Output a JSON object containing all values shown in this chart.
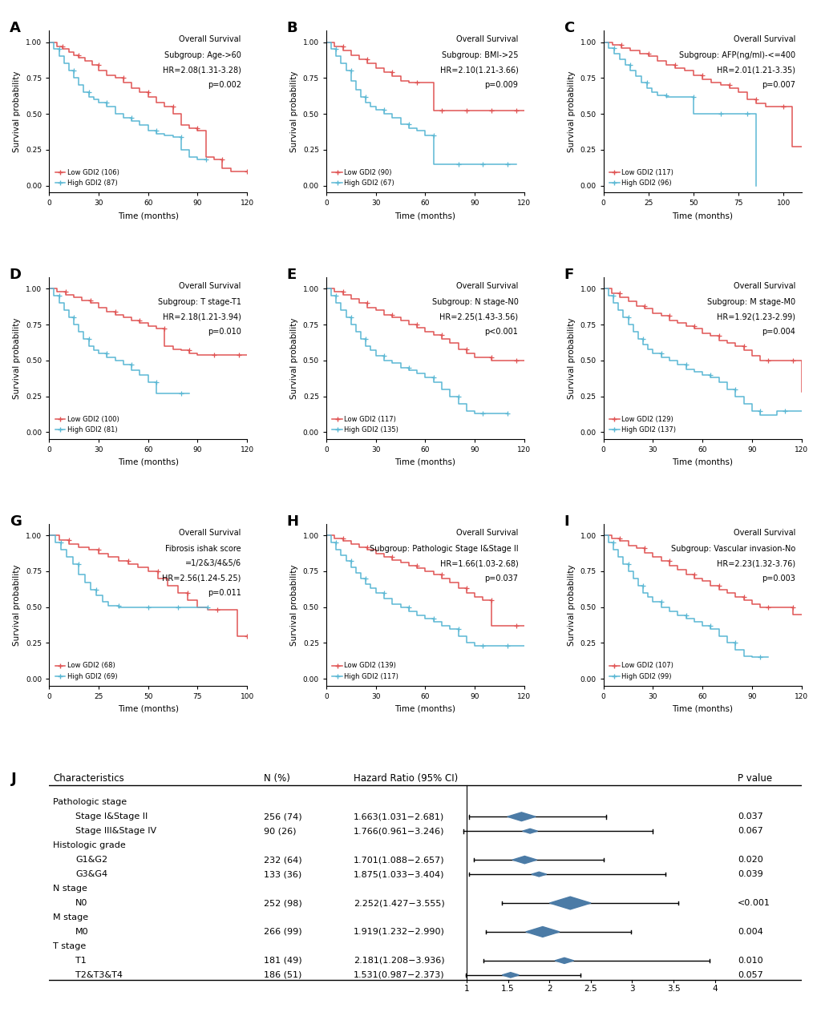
{
  "panels": [
    {
      "label": "A",
      "title": "Overall Survival",
      "subtitle": "Subgroup: Age->60",
      "hr_text": "HR=2.08(1.31-3.28)",
      "p_text": "p=0.002",
      "low_n": 106,
      "high_n": 87,
      "xmax": 120,
      "xticks": [
        0,
        30,
        60,
        90,
        120
      ],
      "low_times": [
        0,
        5,
        8,
        12,
        15,
        18,
        22,
        26,
        30,
        35,
        40,
        45,
        50,
        55,
        60,
        65,
        70,
        75,
        80,
        85,
        90,
        95,
        100,
        105,
        110,
        115,
        120
      ],
      "low_surv": [
        1.0,
        0.97,
        0.95,
        0.93,
        0.91,
        0.89,
        0.87,
        0.84,
        0.8,
        0.77,
        0.75,
        0.72,
        0.68,
        0.65,
        0.62,
        0.58,
        0.55,
        0.5,
        0.42,
        0.4,
        0.38,
        0.2,
        0.18,
        0.12,
        0.1,
        0.1,
        0.1
      ],
      "high_times": [
        0,
        3,
        6,
        9,
        12,
        15,
        18,
        21,
        24,
        27,
        30,
        35,
        40,
        45,
        50,
        55,
        60,
        65,
        70,
        75,
        80,
        85,
        90,
        95
      ],
      "high_surv": [
        1.0,
        0.95,
        0.9,
        0.85,
        0.8,
        0.75,
        0.7,
        0.65,
        0.62,
        0.6,
        0.58,
        0.55,
        0.5,
        0.47,
        0.45,
        0.42,
        0.38,
        0.36,
        0.35,
        0.34,
        0.25,
        0.2,
        0.18,
        0.18
      ]
    },
    {
      "label": "B",
      "title": "Overall Survival",
      "subtitle": "Subgroup: BMI->25",
      "hr_text": "HR=2.10(1.21-3.66)",
      "p_text": "p=0.009",
      "low_n": 90,
      "high_n": 67,
      "xmax": 120,
      "xticks": [
        0,
        30,
        60,
        90,
        120
      ],
      "low_times": [
        0,
        5,
        10,
        15,
        20,
        25,
        30,
        35,
        40,
        45,
        50,
        55,
        60,
        65,
        70,
        75,
        80,
        85,
        90,
        95,
        100,
        105,
        110,
        115,
        120
      ],
      "low_surv": [
        1.0,
        0.97,
        0.94,
        0.91,
        0.88,
        0.85,
        0.82,
        0.79,
        0.76,
        0.73,
        0.72,
        0.72,
        0.72,
        0.52,
        0.52,
        0.52,
        0.52,
        0.52,
        0.52,
        0.52,
        0.52,
        0.52,
        0.52,
        0.52,
        0.52
      ],
      "high_times": [
        0,
        3,
        6,
        9,
        12,
        15,
        18,
        21,
        24,
        27,
        30,
        35,
        40,
        45,
        50,
        55,
        60,
        65,
        70,
        75,
        80,
        85,
        90,
        95,
        100,
        105,
        110,
        115
      ],
      "high_surv": [
        1.0,
        0.95,
        0.9,
        0.85,
        0.8,
        0.73,
        0.67,
        0.62,
        0.58,
        0.55,
        0.53,
        0.5,
        0.47,
        0.43,
        0.4,
        0.38,
        0.35,
        0.15,
        0.15,
        0.15,
        0.15,
        0.15,
        0.15,
        0.15,
        0.15,
        0.15,
        0.15,
        0.15
      ]
    },
    {
      "label": "C",
      "title": "Overall Survival",
      "subtitle": "Subgroup: AFP(ng/ml)-<=400",
      "hr_text": "HR=2.01(1.21-3.35)",
      "p_text": "p=0.007",
      "low_n": 117,
      "high_n": 96,
      "xmax": 110,
      "xticks": [
        0,
        25,
        50,
        75,
        100
      ],
      "low_times": [
        0,
        5,
        10,
        15,
        20,
        25,
        30,
        35,
        40,
        45,
        50,
        55,
        60,
        65,
        70,
        75,
        80,
        85,
        90,
        95,
        100,
        105,
        110
      ],
      "low_surv": [
        1.0,
        0.98,
        0.96,
        0.94,
        0.92,
        0.9,
        0.87,
        0.84,
        0.82,
        0.8,
        0.77,
        0.74,
        0.72,
        0.7,
        0.68,
        0.65,
        0.6,
        0.57,
        0.55,
        0.55,
        0.55,
        0.27,
        0.27
      ],
      "high_times": [
        0,
        3,
        6,
        9,
        12,
        15,
        18,
        21,
        24,
        27,
        30,
        35,
        40,
        45,
        50,
        55,
        60,
        65,
        70,
        75,
        80,
        85
      ],
      "high_surv": [
        1.0,
        0.96,
        0.92,
        0.88,
        0.84,
        0.8,
        0.76,
        0.72,
        0.68,
        0.65,
        0.63,
        0.62,
        0.62,
        0.62,
        0.5,
        0.5,
        0.5,
        0.5,
        0.5,
        0.5,
        0.5,
        0.0
      ]
    },
    {
      "label": "D",
      "title": "Overall Survival",
      "subtitle": "Subgroup: T stage-T1",
      "hr_text": "HR=2.18(1.21-3.94)",
      "p_text": "p=0.010",
      "low_n": 100,
      "high_n": 81,
      "xmax": 120,
      "xticks": [
        0,
        30,
        60,
        90,
        120
      ],
      "low_times": [
        0,
        5,
        10,
        15,
        20,
        25,
        30,
        35,
        40,
        45,
        50,
        55,
        60,
        65,
        70,
        75,
        80,
        85,
        90,
        95,
        100,
        105,
        110,
        115,
        120
      ],
      "low_surv": [
        1.0,
        0.98,
        0.96,
        0.94,
        0.92,
        0.9,
        0.87,
        0.84,
        0.82,
        0.8,
        0.78,
        0.76,
        0.74,
        0.72,
        0.6,
        0.58,
        0.57,
        0.55,
        0.54,
        0.54,
        0.54,
        0.54,
        0.54,
        0.54,
        0.54
      ],
      "high_times": [
        0,
        3,
        6,
        9,
        12,
        15,
        18,
        21,
        24,
        27,
        30,
        35,
        40,
        45,
        50,
        55,
        60,
        65,
        70,
        75,
        80,
        85
      ],
      "high_surv": [
        1.0,
        0.95,
        0.9,
        0.85,
        0.8,
        0.75,
        0.7,
        0.65,
        0.6,
        0.57,
        0.55,
        0.52,
        0.5,
        0.47,
        0.43,
        0.4,
        0.35,
        0.27,
        0.27,
        0.27,
        0.27,
        0.27
      ]
    },
    {
      "label": "E",
      "title": "Overall Survival",
      "subtitle": "Subgroup: N stage-N0",
      "hr_text": "HR=2.25(1.43-3.56)",
      "p_text": "p<0.001",
      "low_n": 117,
      "high_n": 135,
      "xmax": 120,
      "xticks": [
        0,
        30,
        60,
        90,
        120
      ],
      "low_times": [
        0,
        5,
        10,
        15,
        20,
        25,
        30,
        35,
        40,
        45,
        50,
        55,
        60,
        65,
        70,
        75,
        80,
        85,
        90,
        95,
        100,
        105,
        110,
        115,
        120
      ],
      "low_surv": [
        1.0,
        0.98,
        0.96,
        0.93,
        0.9,
        0.87,
        0.85,
        0.82,
        0.8,
        0.78,
        0.75,
        0.73,
        0.7,
        0.68,
        0.65,
        0.62,
        0.58,
        0.55,
        0.52,
        0.52,
        0.5,
        0.5,
        0.5,
        0.5,
        0.5
      ],
      "high_times": [
        0,
        3,
        6,
        9,
        12,
        15,
        18,
        21,
        24,
        27,
        30,
        35,
        40,
        45,
        50,
        55,
        60,
        65,
        70,
        75,
        80,
        85,
        90,
        95,
        100,
        105,
        110
      ],
      "high_surv": [
        1.0,
        0.95,
        0.9,
        0.85,
        0.8,
        0.75,
        0.7,
        0.65,
        0.6,
        0.57,
        0.53,
        0.5,
        0.48,
        0.45,
        0.43,
        0.41,
        0.38,
        0.35,
        0.3,
        0.25,
        0.2,
        0.15,
        0.13,
        0.13,
        0.13,
        0.13,
        0.13
      ]
    },
    {
      "label": "F",
      "title": "Overall Survival",
      "subtitle": "Subgroup: M stage-M0",
      "hr_text": "HR=1.92(1.23-2.99)",
      "p_text": "p=0.004",
      "low_n": 129,
      "high_n": 137,
      "xmax": 120,
      "xticks": [
        0,
        30,
        60,
        90,
        120
      ],
      "low_times": [
        0,
        5,
        10,
        15,
        20,
        25,
        30,
        35,
        40,
        45,
        50,
        55,
        60,
        65,
        70,
        75,
        80,
        85,
        90,
        95,
        100,
        105,
        110,
        115,
        120
      ],
      "low_surv": [
        1.0,
        0.97,
        0.94,
        0.91,
        0.88,
        0.86,
        0.83,
        0.81,
        0.78,
        0.76,
        0.74,
        0.72,
        0.69,
        0.67,
        0.64,
        0.62,
        0.6,
        0.57,
        0.53,
        0.5,
        0.5,
        0.5,
        0.5,
        0.5,
        0.28
      ],
      "high_times": [
        0,
        3,
        6,
        9,
        12,
        15,
        18,
        21,
        24,
        27,
        30,
        35,
        40,
        45,
        50,
        55,
        60,
        65,
        70,
        75,
        80,
        85,
        90,
        95,
        100,
        105,
        110,
        115,
        120
      ],
      "high_surv": [
        1.0,
        0.95,
        0.9,
        0.85,
        0.8,
        0.75,
        0.7,
        0.65,
        0.61,
        0.58,
        0.55,
        0.52,
        0.5,
        0.47,
        0.44,
        0.42,
        0.4,
        0.38,
        0.35,
        0.3,
        0.25,
        0.2,
        0.15,
        0.12,
        0.12,
        0.15,
        0.15,
        0.15,
        0.15
      ]
    },
    {
      "label": "G",
      "title": "Overall Survival",
      "subtitle": "Fibrosis ishak score\n=1/2&3/4&5/6",
      "hr_text": "HR=2.56(1.24-5.25)",
      "p_text": "p=0.011",
      "low_n": 68,
      "high_n": 69,
      "xmax": 100,
      "xticks": [
        0,
        25,
        50,
        75,
        100
      ],
      "low_times": [
        0,
        5,
        10,
        15,
        20,
        25,
        30,
        35,
        40,
        45,
        50,
        55,
        60,
        65,
        70,
        75,
        80,
        85,
        90,
        95,
        100
      ],
      "low_surv": [
        1.0,
        0.97,
        0.94,
        0.92,
        0.9,
        0.87,
        0.85,
        0.82,
        0.8,
        0.78,
        0.75,
        0.7,
        0.65,
        0.6,
        0.55,
        0.5,
        0.48,
        0.48,
        0.48,
        0.3,
        0.3
      ],
      "high_times": [
        0,
        3,
        6,
        9,
        12,
        15,
        18,
        21,
        24,
        27,
        30,
        35,
        40,
        45,
        50,
        55,
        60,
        65,
        70,
        75,
        80
      ],
      "high_surv": [
        1.0,
        0.95,
        0.9,
        0.85,
        0.8,
        0.73,
        0.67,
        0.62,
        0.58,
        0.54,
        0.51,
        0.5,
        0.5,
        0.5,
        0.5,
        0.5,
        0.5,
        0.5,
        0.5,
        0.5,
        0.5
      ]
    },
    {
      "label": "H",
      "title": "Overall Survival",
      "subtitle": "Subgroup: Pathologic Stage I&Stage II",
      "hr_text": "HR=1.66(1.03-2.68)",
      "p_text": "p=0.037",
      "low_n": 139,
      "high_n": 117,
      "xmax": 120,
      "xticks": [
        0,
        30,
        60,
        90,
        120
      ],
      "low_times": [
        0,
        5,
        10,
        15,
        20,
        25,
        30,
        35,
        40,
        45,
        50,
        55,
        60,
        65,
        70,
        75,
        80,
        85,
        90,
        95,
        100,
        105,
        110,
        115,
        120
      ],
      "low_surv": [
        1.0,
        0.98,
        0.96,
        0.94,
        0.92,
        0.9,
        0.87,
        0.85,
        0.83,
        0.81,
        0.79,
        0.77,
        0.75,
        0.73,
        0.7,
        0.67,
        0.63,
        0.6,
        0.57,
        0.55,
        0.37,
        0.37,
        0.37,
        0.37,
        0.37
      ],
      "high_times": [
        0,
        3,
        6,
        9,
        12,
        15,
        18,
        21,
        24,
        27,
        30,
        35,
        40,
        45,
        50,
        55,
        60,
        65,
        70,
        75,
        80,
        85,
        90,
        95,
        100,
        105,
        110,
        115,
        120
      ],
      "high_surv": [
        1.0,
        0.95,
        0.9,
        0.86,
        0.82,
        0.78,
        0.74,
        0.7,
        0.66,
        0.63,
        0.6,
        0.56,
        0.52,
        0.5,
        0.47,
        0.44,
        0.42,
        0.4,
        0.37,
        0.35,
        0.3,
        0.25,
        0.23,
        0.23,
        0.23,
        0.23,
        0.23,
        0.23,
        0.23
      ]
    },
    {
      "label": "I",
      "title": "Overall Survival",
      "subtitle": "Subgroup: Vascular invasion-No",
      "hr_text": "HR=2.23(1.32-3.76)",
      "p_text": "p=0.003",
      "low_n": 107,
      "high_n": 99,
      "xmax": 120,
      "xticks": [
        0,
        30,
        60,
        90,
        120
      ],
      "low_times": [
        0,
        5,
        10,
        15,
        20,
        25,
        30,
        35,
        40,
        45,
        50,
        55,
        60,
        65,
        70,
        75,
        80,
        85,
        90,
        95,
        100,
        105,
        110,
        115,
        120
      ],
      "low_surv": [
        1.0,
        0.98,
        0.96,
        0.93,
        0.91,
        0.88,
        0.85,
        0.82,
        0.79,
        0.76,
        0.73,
        0.7,
        0.68,
        0.65,
        0.62,
        0.6,
        0.57,
        0.55,
        0.52,
        0.5,
        0.5,
        0.5,
        0.5,
        0.45,
        0.45
      ],
      "high_times": [
        0,
        3,
        6,
        9,
        12,
        15,
        18,
        21,
        24,
        27,
        30,
        35,
        40,
        45,
        50,
        55,
        60,
        65,
        70,
        75,
        80,
        85,
        90,
        95,
        100
      ],
      "high_surv": [
        1.0,
        0.95,
        0.9,
        0.85,
        0.8,
        0.75,
        0.7,
        0.65,
        0.6,
        0.57,
        0.54,
        0.5,
        0.47,
        0.44,
        0.42,
        0.4,
        0.37,
        0.35,
        0.3,
        0.25,
        0.2,
        0.16,
        0.15,
        0.15,
        0.15
      ]
    }
  ],
  "forest": {
    "rows": [
      {
        "label": "Pathologic stage",
        "header": true,
        "n": "",
        "ci": "",
        "hr": null,
        "low": null,
        "high": null,
        "pval": ""
      },
      {
        "label": "Stage I&Stage II",
        "header": false,
        "n": "256 (74)",
        "ci": "1.663(1.031−2.681)",
        "hr": 1.663,
        "low": 1.031,
        "high": 2.681,
        "pval": "0.037",
        "size": 1.5
      },
      {
        "label": "Stage III&Stage IV",
        "header": false,
        "n": "90 (26)",
        "ci": "1.766(0.961−3.246)",
        "hr": 1.766,
        "low": 0.961,
        "high": 3.246,
        "pval": "0.067",
        "size": 0.8
      },
      {
        "label": "Histologic grade",
        "header": true,
        "n": "",
        "ci": "",
        "hr": null,
        "low": null,
        "high": null,
        "pval": ""
      },
      {
        "label": "G1&G2",
        "header": false,
        "n": "232 (64)",
        "ci": "1.701(1.088−2.657)",
        "hr": 1.701,
        "low": 1.088,
        "high": 2.657,
        "pval": "0.020",
        "size": 1.3
      },
      {
        "label": "G3&G4",
        "header": false,
        "n": "133 (36)",
        "ci": "1.875(1.033−3.404)",
        "hr": 1.875,
        "low": 1.033,
        "high": 3.404,
        "pval": "0.039",
        "size": 0.8
      },
      {
        "label": "N stage",
        "header": true,
        "n": "",
        "ci": "",
        "hr": null,
        "low": null,
        "high": null,
        "pval": ""
      },
      {
        "label": "N0",
        "header": false,
        "n": "252 (98)",
        "ci": "2.252(1.427−3.555)",
        "hr": 2.252,
        "low": 1.427,
        "high": 3.555,
        "pval": "<0.001",
        "size": 2.2
      },
      {
        "label": "M stage",
        "header": true,
        "n": "",
        "ci": "",
        "hr": null,
        "low": null,
        "high": null,
        "pval": ""
      },
      {
        "label": "M0",
        "header": false,
        "n": "266 (99)",
        "ci": "1.919(1.232−2.990)",
        "hr": 1.919,
        "low": 1.232,
        "high": 2.99,
        "pval": "0.004",
        "size": 1.8
      },
      {
        "label": "T stage",
        "header": true,
        "n": "",
        "ci": "",
        "hr": null,
        "low": null,
        "high": null,
        "pval": ""
      },
      {
        "label": "T1",
        "header": false,
        "n": "181 (49)",
        "ci": "2.181(1.208−3.936)",
        "hr": 2.181,
        "low": 1.208,
        "high": 3.936,
        "pval": "0.010",
        "size": 1.0
      },
      {
        "label": "T2&T3&T4",
        "header": false,
        "n": "186 (51)",
        "ci": "1.531(0.987−2.373)",
        "hr": 1.531,
        "low": 0.987,
        "high": 2.373,
        "pval": "0.057",
        "size": 0.9
      }
    ],
    "xmin": 1.0,
    "xmax": 4.0,
    "xticks": [
      1,
      1.5,
      2,
      2.5,
      3,
      3.5,
      4
    ]
  },
  "low_color": "#E05555",
  "high_color": "#5BB8D4",
  "forest_color": "#4B7BA6"
}
